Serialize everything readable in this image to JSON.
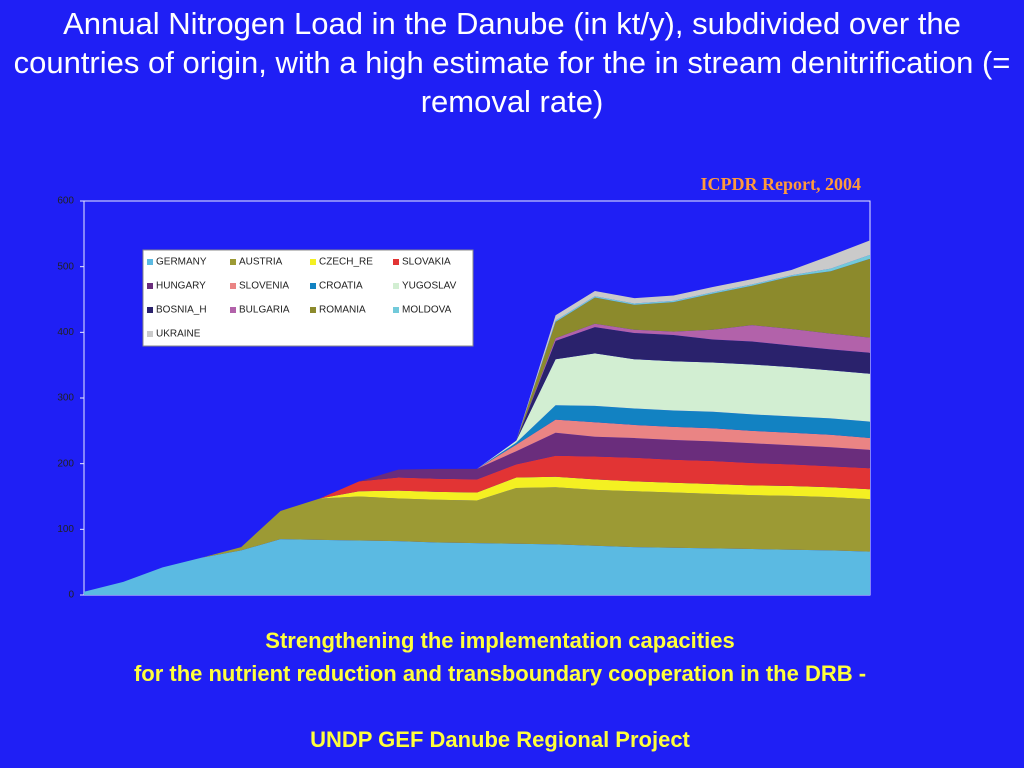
{
  "chart_data": {
    "type": "stacked-area",
    "title": "Annual Nitrogen Load in the Danube (in kt/y), subdivided over the countries of origin, with a high estimate for the in stream denitrification (= removal rate)",
    "source": "ICPDR Report, 2004",
    "categories": [
      null,
      null,
      null,
      null,
      null,
      null,
      null,
      null,
      null,
      null,
      null,
      null,
      null,
      null,
      null,
      null,
      null,
      null,
      null,
      null,
      null
    ],
    "ylim": [
      0,
      600
    ],
    "yticks": [
      0,
      100,
      200,
      300,
      400,
      500,
      600
    ],
    "series": [
      {
        "name": "GERMANY",
        "color": "#5bbae2",
        "values": [
          5,
          20,
          42,
          57,
          68,
          85,
          84,
          83,
          82,
          80,
          79,
          78,
          77,
          75,
          73,
          72,
          71,
          70,
          69,
          68,
          66
        ]
      },
      {
        "name": "AUSTRIA",
        "color": "#9c9a34",
        "values": [
          0,
          0,
          0,
          0,
          5,
          43,
          63,
          67,
          65,
          65,
          65,
          85,
          87,
          85,
          85,
          84,
          83,
          82,
          82,
          81,
          80
        ]
      },
      {
        "name": "CZECH_RE",
        "color": "#f4f022",
        "values": [
          0,
          0,
          0,
          0,
          0,
          0,
          0,
          8,
          12,
          12,
          12,
          16,
          16,
          16,
          15,
          15,
          15,
          15,
          15,
          15,
          15
        ]
      },
      {
        "name": "SLOVAKIA",
        "color": "#e23434",
        "values": [
          0,
          0,
          0,
          0,
          0,
          0,
          0,
          15,
          20,
          20,
          20,
          20,
          32,
          35,
          36,
          35,
          35,
          34,
          33,
          32,
          32
        ]
      },
      {
        "name": "HUNGARY",
        "color": "#6a2d7c",
        "values": [
          0,
          0,
          0,
          0,
          0,
          0,
          0,
          0,
          12,
          15,
          16,
          20,
          35,
          30,
          30,
          30,
          30,
          30,
          29,
          29,
          28
        ]
      },
      {
        "name": "SLOVENIA",
        "color": "#ea8484",
        "values": [
          0,
          0,
          0,
          0,
          0,
          0,
          0,
          0,
          0,
          0,
          0,
          10,
          20,
          22,
          20,
          20,
          20,
          19,
          19,
          19,
          18
        ]
      },
      {
        "name": "CROATIA",
        "color": "#1282c2",
        "values": [
          0,
          0,
          0,
          0,
          0,
          0,
          0,
          0,
          0,
          0,
          0,
          3,
          22,
          25,
          25,
          25,
          25,
          25,
          25,
          25,
          25
        ]
      },
      {
        "name": "YUGOSLAV",
        "color": "#d2eed2",
        "values": [
          0,
          0,
          0,
          0,
          0,
          0,
          0,
          0,
          0,
          0,
          0,
          3,
          70,
          80,
          75,
          75,
          75,
          76,
          75,
          73,
          73
        ]
      },
      {
        "name": "BOSNIA_H",
        "color": "#2a226c",
        "values": [
          0,
          0,
          0,
          0,
          0,
          0,
          0,
          0,
          0,
          0,
          0,
          0,
          28,
          40,
          40,
          40,
          35,
          35,
          33,
          32,
          32
        ]
      },
      {
        "name": "BULGARIA",
        "color": "#b262aa",
        "values": [
          0,
          0,
          0,
          0,
          0,
          0,
          0,
          0,
          0,
          0,
          0,
          0,
          4,
          5,
          5,
          5,
          15,
          25,
          25,
          24,
          23
        ]
      },
      {
        "name": "ROMANIA",
        "color": "#8c8a2c",
        "values": [
          0,
          0,
          0,
          0,
          0,
          0,
          0,
          0,
          0,
          0,
          0,
          0,
          25,
          40,
          38,
          45,
          55,
          60,
          80,
          95,
          120
        ]
      },
      {
        "name": "MOLDOVA",
        "color": "#72cada",
        "values": [
          0,
          0,
          0,
          0,
          0,
          0,
          0,
          0,
          0,
          0,
          0,
          0,
          2,
          2,
          2,
          2,
          2,
          2,
          2,
          4,
          6
        ]
      },
      {
        "name": "UKRAINE",
        "color": "#cacaca",
        "values": [
          0,
          0,
          0,
          0,
          0,
          0,
          0,
          0,
          0,
          0,
          0,
          0,
          8,
          8,
          8,
          8,
          8,
          8,
          8,
          20,
          22
        ]
      }
    ]
  },
  "footer": [
    "Strengthening the implementation capacities",
    "for the nutrient reduction and transboundary cooperation in the DRB -",
    "UNDP GEF Danube Regional Project"
  ]
}
